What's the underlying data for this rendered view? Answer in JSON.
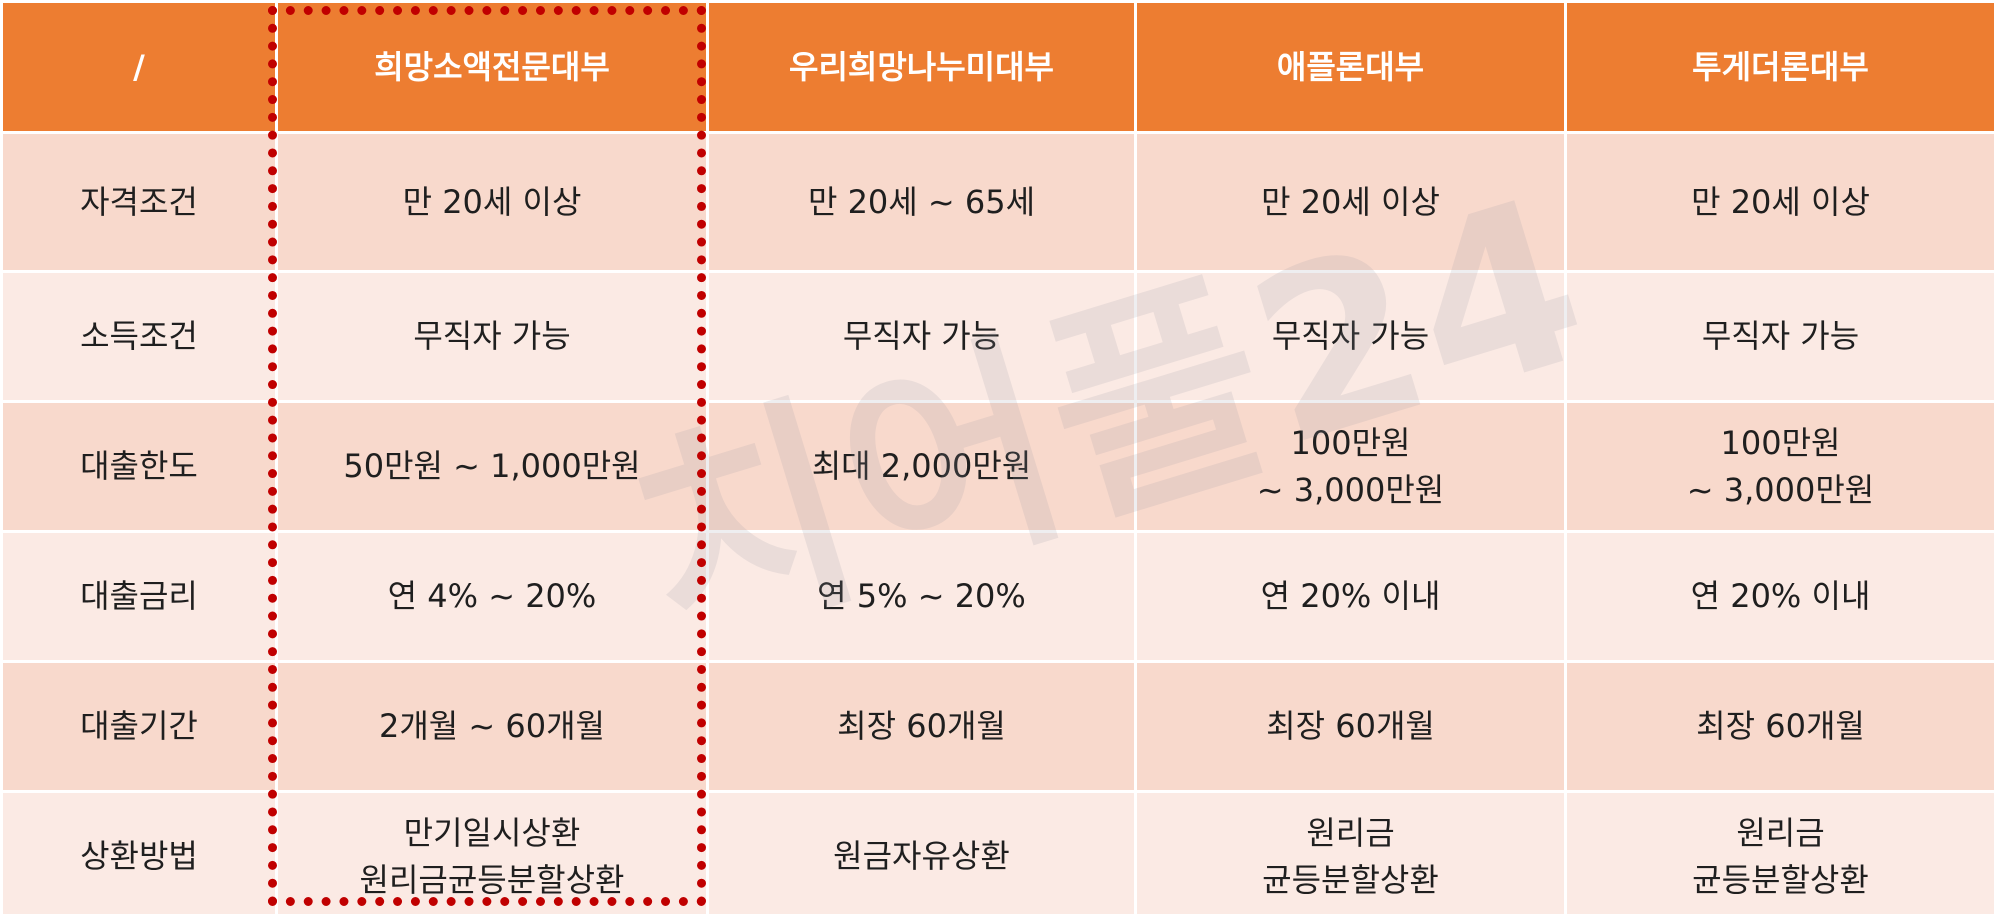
{
  "header": [
    "/",
    "희망소액전문대부",
    "우리희망나누미대부",
    "애플론대부",
    "투게더론대부"
  ],
  "rows": [
    {
      "label": "자격조건",
      "cells": [
        "만 20세 이상",
        "만 20세 ~ 65세",
        "만 20세 이상",
        "만 20세 이상"
      ]
    },
    {
      "label": "소득조건",
      "cells": [
        "무직자 가능",
        "무직자 가능",
        "무직자 가능",
        "무직자 가능"
      ]
    },
    {
      "label": "대출한도",
      "cells": [
        "50만원 ~ 1,000만원",
        "최대 2,000만원",
        "100만원\n~ 3,000만원",
        "100만원\n~ 3,000만원"
      ]
    },
    {
      "label": "대출금리",
      "cells": [
        "연 4% ~ 20%",
        "연 5% ~ 20%",
        "연 20% 이내",
        "연 20% 이내"
      ]
    },
    {
      "label": "대출기간",
      "cells": [
        "2개월 ~ 60개월",
        "최장 60개월",
        "최장 60개월",
        "최장 60개월"
      ]
    },
    {
      "label": "상환방법",
      "cells": [
        "만기일시상환\n원리금균등분할상환",
        "원금자유상환",
        "원리금\n균등분할상환",
        "원리금\n균등분할상환"
      ]
    }
  ],
  "watermark": "치어풀24",
  "colors": {
    "header_bg": "#ed7d31",
    "row_dark": "#f8d9cc",
    "row_light": "#fbeae4",
    "highlight": "#c00000"
  }
}
